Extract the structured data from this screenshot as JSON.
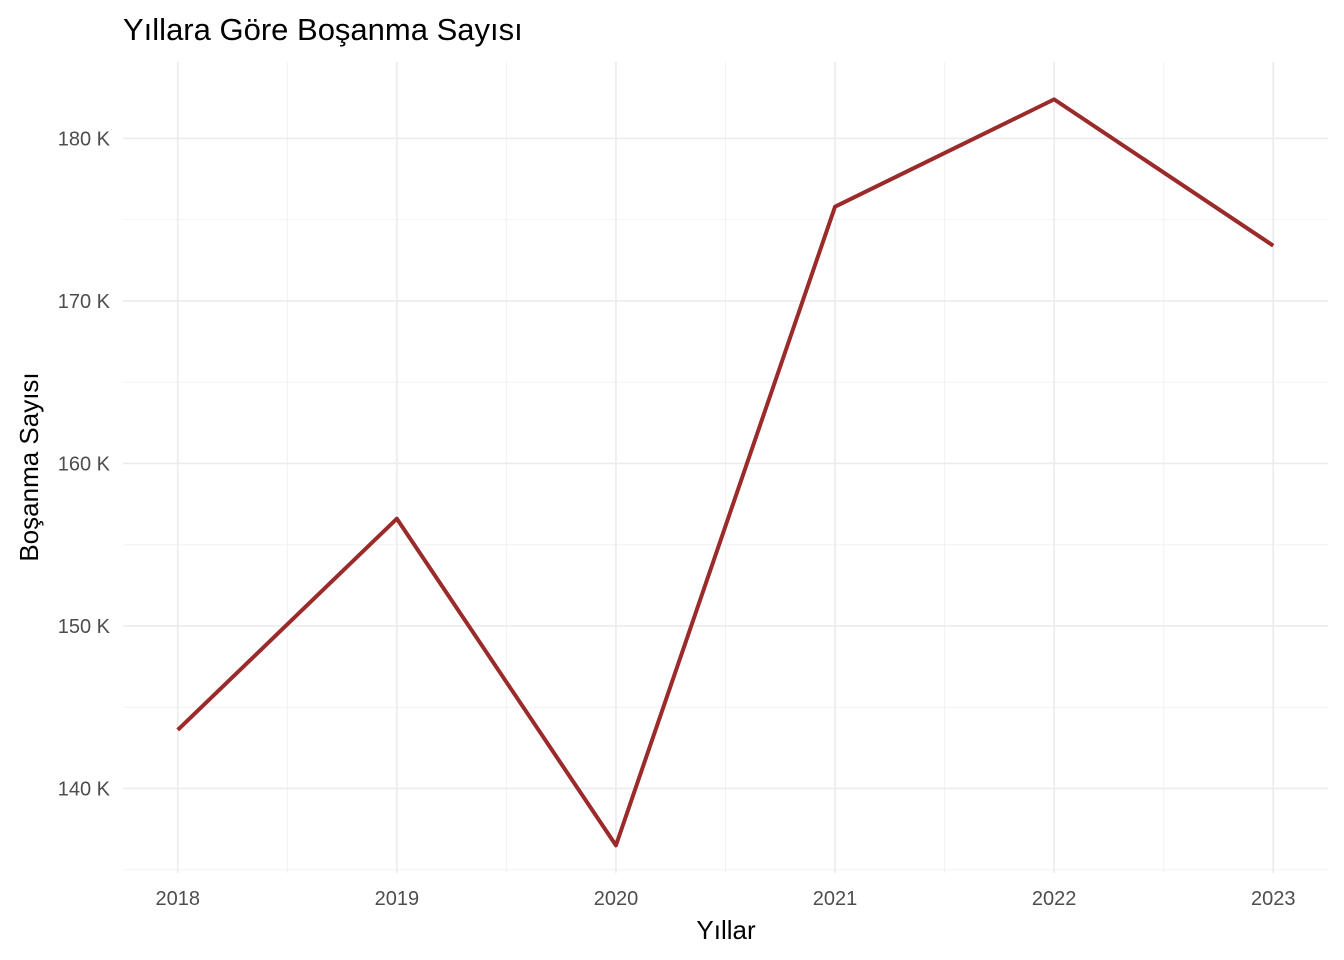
{
  "chart_data": {
    "type": "line",
    "title": "Yıllara Göre Boşanma Sayısı",
    "xlabel": "Yıllar",
    "ylabel": "Boşanma Sayısı",
    "x": [
      2018,
      2019,
      2020,
      2021,
      2022,
      2023
    ],
    "x_tick_labels": [
      "2018",
      "2019",
      "2020",
      "2021",
      "2022",
      "2023"
    ],
    "series": [
      {
        "values": [
          143600,
          156600,
          136500,
          175800,
          182400,
          173400
        ],
        "color": "#9b2a2a"
      }
    ],
    "y_ticks": [
      140000,
      150000,
      160000,
      170000,
      180000
    ],
    "y_tick_labels": [
      "140 K",
      "150 K",
      "160 K",
      "170 K",
      "180 K"
    ],
    "xlim": [
      2017.75,
      2023.25
    ],
    "ylim": [
      134800,
      184700
    ],
    "grid": true,
    "legend": "none"
  }
}
